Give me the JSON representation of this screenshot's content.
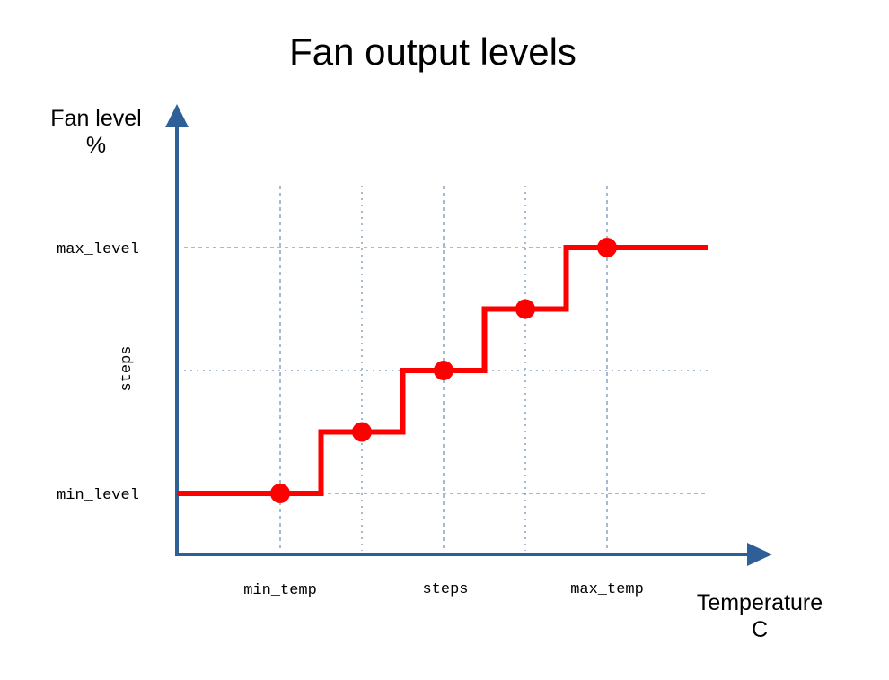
{
  "chart_data": {
    "type": "line",
    "step": true,
    "title": "Fan output levels",
    "ylabel_lines": [
      "Fan level",
      "%"
    ],
    "xlabel_lines": [
      "Temperature",
      "C"
    ],
    "x_tick_labels": [
      "min_temp",
      "steps",
      "max_temp"
    ],
    "y_tick_labels": [
      "max_level",
      "min_level"
    ],
    "y_axis_annotation": "steps",
    "points": [
      {
        "x": 1,
        "y": 0
      },
      {
        "x": 2,
        "y": 1
      },
      {
        "x": 3,
        "y": 2
      },
      {
        "x": 4,
        "y": 3
      },
      {
        "x": 5,
        "y": 4
      }
    ],
    "grid": true,
    "colors": {
      "line": "#ff0000",
      "axis": "#2e5f96",
      "grid": "#2e5f96"
    }
  }
}
